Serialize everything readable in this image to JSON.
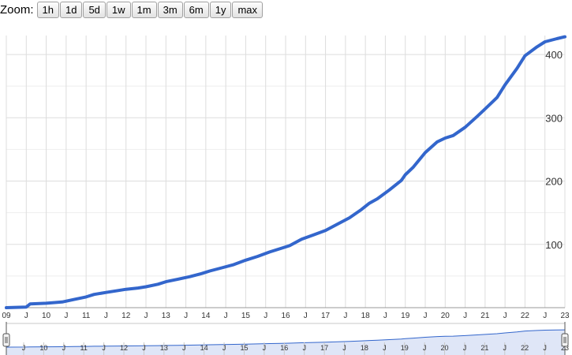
{
  "zoom": {
    "label": "Zoom:",
    "buttons": [
      "1h",
      "1d",
      "5d",
      "1w",
      "1m",
      "3m",
      "6m",
      "1y",
      "max"
    ]
  },
  "colors": {
    "line": "#3366cc",
    "grid": "#dddddd",
    "grid_minor": "#eeeeee",
    "range_fill": "#dfe6f7",
    "range_line": "#3366cc",
    "axis_text": "#333333"
  },
  "chart_data": {
    "type": "line",
    "y_ticks": [
      100,
      200,
      300,
      400
    ],
    "ylim": [
      0,
      430
    ],
    "xlim": [
      2009.0,
      2023.0
    ],
    "x_tick_labels": [
      "09",
      "J",
      "10",
      "J",
      "11",
      "J",
      "12",
      "J",
      "13",
      "J",
      "14",
      "J",
      "15",
      "J",
      "16",
      "J",
      "17",
      "J",
      "18",
      "J",
      "19",
      "J",
      "20",
      "J",
      "21",
      "J",
      "22",
      "J",
      "23"
    ],
    "navigator_tick_labels": [
      "J",
      "10",
      "J",
      "11",
      "J",
      "12",
      "J",
      "13",
      "J",
      "14",
      "J",
      "15",
      "J",
      "16",
      "J",
      "17",
      "J",
      "18",
      "J",
      "19",
      "J",
      "20",
      "J",
      "21",
      "J",
      "22",
      "J",
      "23"
    ],
    "grid": true,
    "series": [
      {
        "x": [
          2009.0,
          2009.5,
          2009.6,
          2010.0,
          2010.4,
          2010.7,
          2011.0,
          2011.2,
          2011.5,
          2011.8,
          2012.0,
          2012.3,
          2012.5,
          2012.8,
          2013.0,
          2013.3,
          2013.6,
          2013.9,
          2014.1,
          2014.4,
          2014.7,
          2015.0,
          2015.3,
          2015.6,
          2015.9,
          2016.1,
          2016.4,
          2016.7,
          2017.0,
          2017.3,
          2017.6,
          2017.9,
          2018.1,
          2018.3,
          2018.6,
          2018.9,
          2019.0,
          2019.2,
          2019.5,
          2019.8,
          2020.0,
          2020.2,
          2020.5,
          2020.8,
          2021.0,
          2021.3,
          2021.5,
          2021.8,
          2022.0,
          2022.3,
          2022.5,
          2022.8,
          2023.0
        ],
        "y": [
          0,
          1,
          6,
          7,
          9,
          13,
          17,
          21,
          24,
          27,
          29,
          31,
          33,
          37,
          41,
          45,
          49,
          54,
          58,
          63,
          68,
          75,
          81,
          88,
          94,
          98,
          108,
          115,
          122,
          132,
          142,
          155,
          165,
          172,
          186,
          201,
          210,
          222,
          245,
          262,
          268,
          272,
          285,
          302,
          314,
          332,
          352,
          378,
          398,
          412,
          420,
          425,
          428
        ]
      }
    ]
  }
}
